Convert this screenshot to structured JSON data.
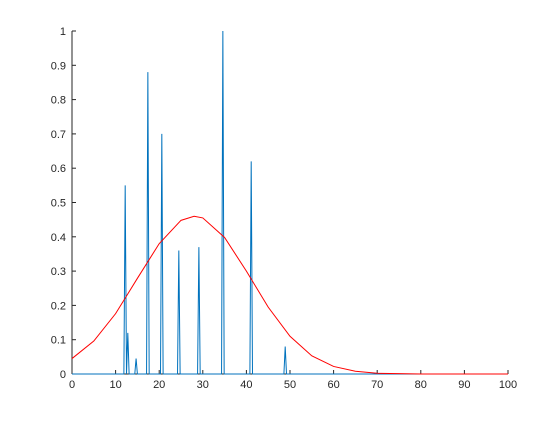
{
  "chart_data": {
    "type": "line",
    "xlim": [
      0,
      100
    ],
    "xticks": [
      0,
      10,
      20,
      30,
      40,
      50,
      60,
      70,
      80,
      90,
      100
    ],
    "ylim": [
      0,
      1
    ],
    "yticks": [
      0,
      0.1,
      0.2,
      0.3,
      0.4,
      0.5,
      0.6,
      0.7,
      0.8,
      0.9,
      1
    ],
    "grid": false,
    "series": [
      {
        "color": "#0072bd",
        "x": [
          0,
          11.9,
          12.2,
          12.5,
          12.8,
          13.1,
          14.4,
          14.7,
          15,
          17.1,
          17.4,
          17.7,
          20.3,
          20.6,
          20.9,
          24.2,
          24.5,
          24.8,
          28.8,
          29.1,
          29.4,
          34.3,
          34.6,
          34.9,
          40.8,
          41.1,
          41.4,
          48.6,
          48.9,
          49.2,
          100
        ],
        "values": [
          0,
          0,
          0.55,
          0,
          0.12,
          0,
          0,
          0.045,
          0,
          0,
          0.88,
          0,
          0,
          0.7,
          0,
          0,
          0.36,
          0,
          0,
          0.37,
          0,
          0,
          1,
          0,
          0,
          0.62,
          0,
          0,
          0.08,
          0,
          0
        ]
      },
      {
        "color": "#ff0000",
        "x": [
          0,
          5,
          10,
          15,
          20,
          25,
          28,
          30,
          35,
          40,
          45,
          50,
          55,
          60,
          65,
          70,
          75,
          80,
          85,
          90,
          95,
          100
        ],
        "values": [
          0.045,
          0.096,
          0.176,
          0.279,
          0.38,
          0.448,
          0.46,
          0.455,
          0.398,
          0.3,
          0.195,
          0.11,
          0.053,
          0.022,
          0.008,
          0.002,
          0.001,
          0,
          0,
          0,
          0,
          0
        ]
      }
    ]
  }
}
